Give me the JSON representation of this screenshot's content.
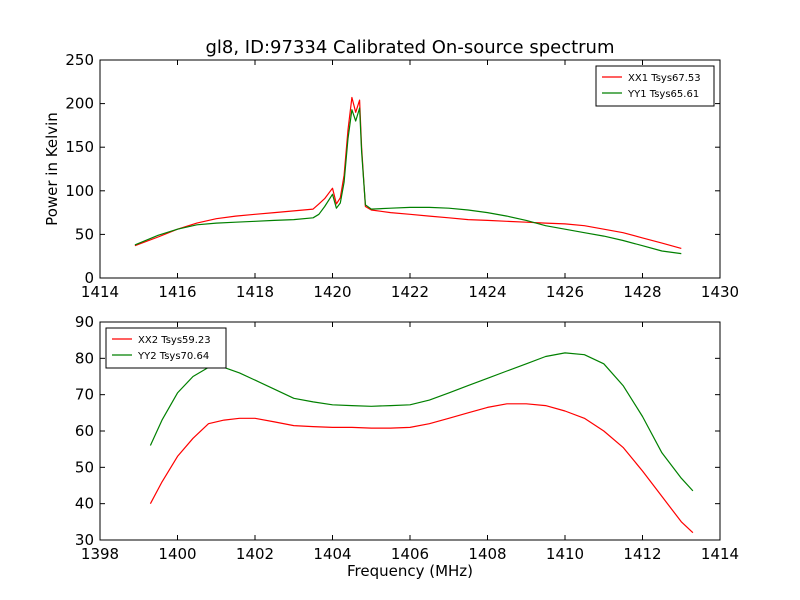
{
  "figure": {
    "title": "gl8, ID:97334 Calibrated On-source spectrum"
  },
  "colors": {
    "red": "#ff0000",
    "green": "#008000"
  },
  "chart_data": [
    {
      "type": "line",
      "title": "gl8, ID:97334 Calibrated On-source spectrum",
      "xlabel": "",
      "ylabel": "Power in Kelvin",
      "xlim": [
        1414,
        1430
      ],
      "ylim": [
        0,
        250
      ],
      "xticks": [
        "1414",
        "1416",
        "1418",
        "1420",
        "1422",
        "1424",
        "1426",
        "1428",
        "1430"
      ],
      "yticks": [
        "0",
        "50",
        "100",
        "150",
        "200",
        "250"
      ],
      "legend_position": "top-right",
      "grid": false,
      "series": [
        {
          "name": "XX1 Tsys67.53",
          "color": "#ff0000",
          "x": [
            1414.9,
            1415.5,
            1416.0,
            1416.5,
            1417.0,
            1417.5,
            1418.0,
            1418.5,
            1419.0,
            1419.5,
            1419.65,
            1419.8,
            1420.0,
            1420.1,
            1420.2,
            1420.3,
            1420.4,
            1420.5,
            1420.6,
            1420.7,
            1420.75,
            1420.85,
            1421.0,
            1421.5,
            1422.0,
            1422.5,
            1423.0,
            1423.5,
            1424.0,
            1424.5,
            1425.0,
            1425.5,
            1426.0,
            1426.5,
            1427.0,
            1427.5,
            1428.0,
            1428.5,
            1429.0
          ],
          "y": [
            37,
            47,
            56,
            63,
            68,
            71,
            73,
            75,
            77,
            79,
            85,
            91,
            103,
            85,
            92,
            118,
            170,
            207,
            190,
            204,
            150,
            82,
            78,
            75,
            73,
            71,
            69,
            67,
            66,
            65,
            64,
            63,
            62,
            60,
            56,
            52,
            46,
            40,
            34
          ]
        },
        {
          "name": "YY1 Tsys65.61",
          "color": "#008000",
          "x": [
            1414.9,
            1415.5,
            1416.0,
            1416.5,
            1417.0,
            1417.5,
            1418.0,
            1418.5,
            1419.0,
            1419.5,
            1419.65,
            1419.8,
            1420.0,
            1420.1,
            1420.2,
            1420.3,
            1420.4,
            1420.5,
            1420.6,
            1420.7,
            1420.75,
            1420.85,
            1421.0,
            1421.5,
            1422.0,
            1422.5,
            1423.0,
            1423.5,
            1424.0,
            1424.5,
            1425.0,
            1425.5,
            1426.0,
            1426.5,
            1427.0,
            1427.5,
            1428.0,
            1428.5,
            1429.0
          ],
          "y": [
            38,
            49,
            56,
            61,
            63,
            64,
            65,
            66,
            67,
            69,
            73,
            82,
            96,
            80,
            86,
            110,
            160,
            193,
            180,
            195,
            145,
            84,
            79,
            80,
            81,
            81,
            80,
            78,
            75,
            71,
            66,
            60,
            56,
            52,
            48,
            43,
            37,
            31,
            28
          ]
        }
      ]
    },
    {
      "type": "line",
      "xlabel": "Frequency (MHz)",
      "ylabel": "",
      "xlim": [
        1398,
        1414
      ],
      "ylim": [
        30,
        90
      ],
      "xticks": [
        "1398",
        "1400",
        "1402",
        "1404",
        "1406",
        "1408",
        "1410",
        "1412",
        "1414"
      ],
      "yticks": [
        "30",
        "40",
        "50",
        "60",
        "70",
        "80",
        "90"
      ],
      "legend_position": "top-left",
      "grid": false,
      "series": [
        {
          "name": "XX2 Tsys59.23",
          "color": "#ff0000",
          "x": [
            1399.3,
            1399.6,
            1400.0,
            1400.4,
            1400.8,
            1401.2,
            1401.6,
            1402.0,
            1402.5,
            1403.0,
            1403.5,
            1404.0,
            1404.5,
            1405.0,
            1405.5,
            1406.0,
            1406.5,
            1407.0,
            1407.5,
            1408.0,
            1408.5,
            1409.0,
            1409.5,
            1410.0,
            1410.5,
            1411.0,
            1411.5,
            1412.0,
            1412.5,
            1413.0,
            1413.3
          ],
          "y": [
            40,
            46,
            53,
            58,
            62,
            63,
            63.5,
            63.5,
            62.5,
            61.5,
            61.2,
            61,
            61,
            60.8,
            60.8,
            61,
            62,
            63.5,
            65,
            66.5,
            67.5,
            67.5,
            67,
            65.5,
            63.5,
            60,
            55.5,
            49,
            42,
            35,
            32
          ]
        },
        {
          "name": "YY2 Tsys70.64",
          "color": "#008000",
          "x": [
            1399.3,
            1399.6,
            1400.0,
            1400.4,
            1400.8,
            1401.2,
            1401.6,
            1402.0,
            1402.5,
            1403.0,
            1403.5,
            1404.0,
            1404.5,
            1405.0,
            1405.5,
            1406.0,
            1406.5,
            1407.0,
            1407.5,
            1408.0,
            1408.5,
            1409.0,
            1409.5,
            1410.0,
            1410.5,
            1411.0,
            1411.5,
            1412.0,
            1412.5,
            1413.0,
            1413.3
          ],
          "y": [
            56,
            63,
            70.5,
            75,
            77.5,
            77.5,
            76,
            74,
            71.5,
            69,
            68,
            67.2,
            67,
            66.8,
            67,
            67.2,
            68.5,
            70.5,
            72.5,
            74.5,
            76.5,
            78.5,
            80.5,
            81.5,
            81,
            78.5,
            72.5,
            64,
            54,
            47,
            43.5
          ]
        }
      ]
    }
  ]
}
